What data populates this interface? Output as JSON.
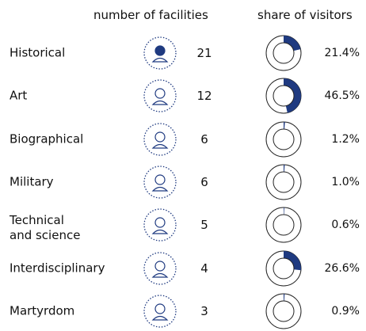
{
  "chart_data": {
    "type": "donut",
    "categories": [
      "Historical",
      "Art",
      "Biographical",
      "Military",
      "Technical\nand science",
      "Interdisciplinary",
      "Martyrdom"
    ],
    "series": [
      {
        "name": "number of facilities",
        "values": [
          21,
          12,
          6,
          6,
          5,
          4,
          3
        ]
      },
      {
        "name": "share of visitors",
        "color": "#1f3a80",
        "values": [
          21.4,
          46.5,
          1.2,
          1.0,
          0.6,
          26.6,
          0.9
        ],
        "value_labels": [
          "21.4%",
          "46.5%",
          "1.2%",
          "1.0%",
          "0.6%",
          "26.6%",
          "0.9%"
        ]
      }
    ]
  }
}
